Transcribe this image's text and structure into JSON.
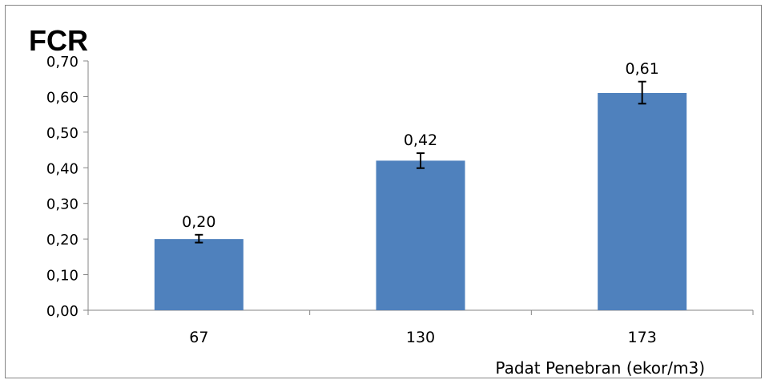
{
  "chart_data": {
    "type": "bar",
    "title": "FCR",
    "xlabel": "Padat Penebran (ekor/m3)",
    "ylabel": "",
    "categories": [
      "67",
      "130",
      "173"
    ],
    "values": [
      0.2,
      0.42,
      0.61
    ],
    "data_labels": [
      "0,20",
      "0,42",
      "0,61"
    ],
    "error_bars": [
      {
        "low": 0.19,
        "high": 0.212
      },
      {
        "low": 0.399,
        "high": 0.441
      },
      {
        "low": 0.58,
        "high": 0.642
      }
    ],
    "ylim": [
      0,
      0.7
    ],
    "yticks": [
      0,
      0.1,
      0.2,
      0.3,
      0.4,
      0.5,
      0.6,
      0.7
    ],
    "ytick_labels": [
      "0,00",
      "0,10",
      "0,20",
      "0,30",
      "0,40",
      "0,50",
      "0,60",
      "0,70"
    ],
    "grid": false,
    "legend": "none",
    "colors": {
      "bar": "#4F81BD",
      "axis": "#868686",
      "frame": "#868686"
    }
  }
}
